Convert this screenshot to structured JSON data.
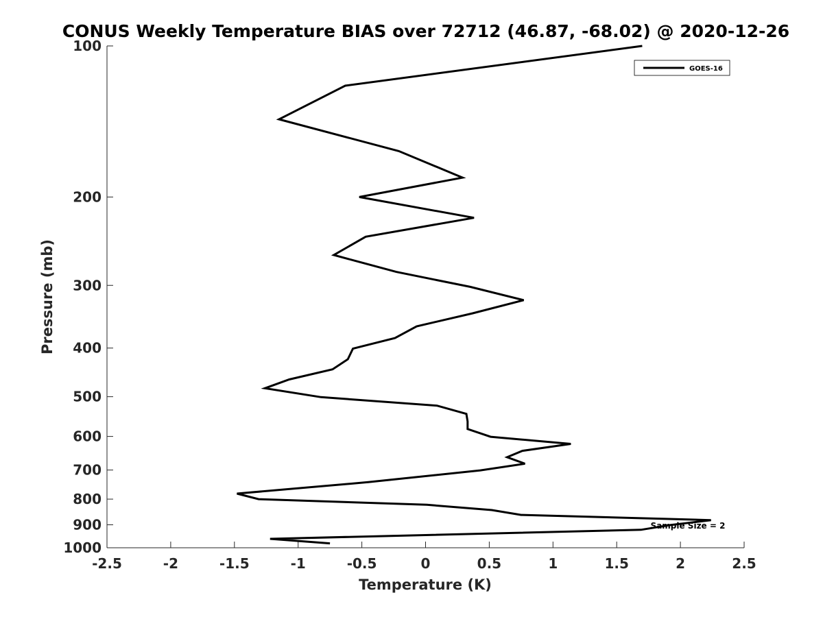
{
  "chart_data": {
    "type": "line",
    "title": "CONUS Weekly Temperature BIAS over 72712 (46.87, -68.02) @ 2020-12-26",
    "xlabel": "Temperature (K)",
    "ylabel": "Pressure (mb)",
    "xlim": [
      -2.5,
      2.5
    ],
    "ylim": [
      100,
      1000
    ],
    "y_scale": "log",
    "y_reversed": true,
    "grid": false,
    "legend_position": "top-right",
    "x_ticks": [
      -2.5,
      -2,
      -1.5,
      -1,
      -0.5,
      0,
      0.5,
      1,
      1.5,
      2,
      2.5
    ],
    "x_tick_labels": [
      "-2.5",
      "-2",
      "-1.5",
      "-1",
      "-0.5",
      "0",
      "0.5",
      "1",
      "1.5",
      "2",
      "2.5"
    ],
    "y_ticks": [
      100,
      200,
      300,
      400,
      500,
      600,
      700,
      800,
      900,
      1000
    ],
    "y_tick_labels": [
      "100",
      "200",
      "300",
      "400",
      "500",
      "600",
      "700",
      "800",
      "900",
      "1000"
    ],
    "series": [
      {
        "name": "GOES-16",
        "color": "#000000",
        "points": [
          [
            1.7,
            100
          ],
          [
            -0.63,
            120
          ],
          [
            -1.15,
            140
          ],
          [
            -0.21,
            162
          ],
          [
            0.29,
            183
          ],
          [
            -0.52,
            200
          ],
          [
            0.38,
            220
          ],
          [
            -0.47,
            240
          ],
          [
            -0.72,
            261
          ],
          [
            -0.23,
            282
          ],
          [
            0.35,
            302
          ],
          [
            0.77,
            321
          ],
          [
            0.37,
            341
          ],
          [
            -0.07,
            362
          ],
          [
            -0.24,
            382
          ],
          [
            -0.57,
            401
          ],
          [
            -0.61,
            421
          ],
          [
            -0.73,
            441
          ],
          [
            -1.07,
            462
          ],
          [
            -1.26,
            481
          ],
          [
            -0.82,
            501
          ],
          [
            0.09,
            521
          ],
          [
            0.32,
            541
          ],
          [
            0.33,
            560
          ],
          [
            0.33,
            580
          ],
          [
            0.51,
            601
          ],
          [
            1.14,
            621
          ],
          [
            0.76,
            641
          ],
          [
            0.64,
            660
          ],
          [
            0.78,
            680
          ],
          [
            0.43,
            701
          ],
          [
            -0.45,
            740
          ],
          [
            -1.48,
            780
          ],
          [
            -1.31,
            800
          ],
          [
            0.01,
            821
          ],
          [
            0.52,
            841
          ],
          [
            0.75,
            860
          ],
          [
            2.24,
            881
          ],
          [
            1.92,
            901
          ],
          [
            1.69,
            921
          ],
          [
            -1.22,
            960
          ],
          [
            -0.75,
            980
          ]
        ]
      }
    ],
    "annotations": [
      {
        "text": "Sample Size = 2",
        "x": 2.2,
        "y": 900
      }
    ]
  }
}
